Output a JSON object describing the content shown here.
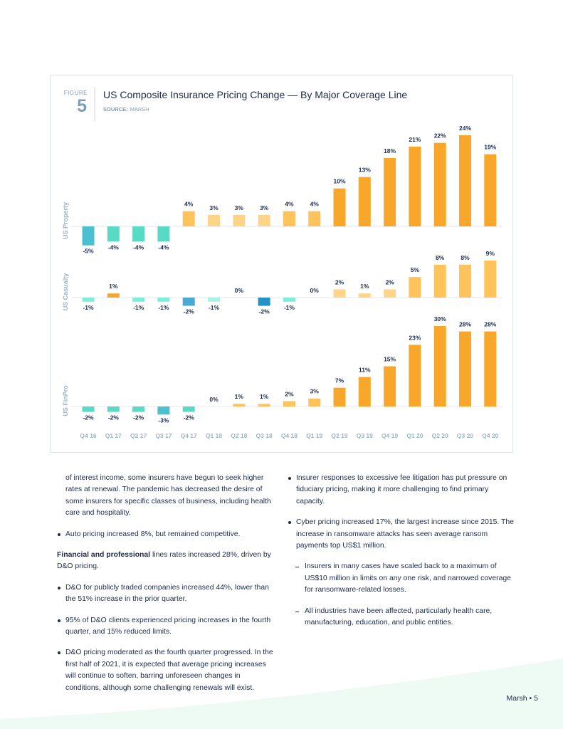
{
  "figure": {
    "label": "FIGURE",
    "number": "5",
    "source_label": "SOURCE:",
    "source": "MARSH"
  },
  "chart_data": {
    "type": "bar",
    "title": "US Composite Insurance Pricing Change — By Major Coverage Line",
    "categories": [
      "Q4 16",
      "Q1 17",
      "Q2 17",
      "Q3 17",
      "Q4 17",
      "Q1 18",
      "Q2 18",
      "Q3 18",
      "Q4 18",
      "Q1 19",
      "Q2 19",
      "Q3 19",
      "Q4 19",
      "Q1 20",
      "Q2 20",
      "Q3 20",
      "Q4 20"
    ],
    "series": [
      {
        "name": "US Property",
        "values": [
          -5,
          -4,
          -4,
          -4,
          4,
          3,
          3,
          3,
          4,
          4,
          10,
          13,
          18,
          21,
          22,
          24,
          19
        ],
        "value_labels": [
          "-5%",
          "-4%",
          "-4%",
          "-4%",
          "4%",
          "3%",
          "3%",
          "3%",
          "4%",
          "4%",
          "10%",
          "13%",
          "18%",
          "21%",
          "22%",
          "24%",
          "19%"
        ],
        "colors": [
          "#4cc0d0",
          "#5ad9c4",
          "#5ad9c4",
          "#5ad9c4",
          "#ffc35c",
          "#ffd488",
          "#ffd488",
          "#ffd488",
          "#ffc35c",
          "#ffc35c",
          "#f9a72b",
          "#f9a72b",
          "#f9a72b",
          "#f9a72b",
          "#f9a72b",
          "#f9a72b",
          "#f9a72b"
        ]
      },
      {
        "name": "US Casualty",
        "values": [
          -1,
          1,
          -1,
          -1,
          -2,
          -1,
          0,
          -2,
          -1,
          0,
          2,
          1,
          2,
          5,
          8,
          8,
          9
        ],
        "value_labels": [
          "-1%",
          "1%",
          "-1%",
          "-1%",
          "-2%",
          "-1%",
          "0%",
          "-2%",
          "-1%",
          "0%",
          "2%",
          "1%",
          "2%",
          "5%",
          "8%",
          "8%",
          "9%"
        ],
        "colors": [
          "#7eedd9",
          "#f9a72b",
          "#7eedd9",
          "#7eedd9",
          "#4aa8d4",
          "#a8f3e5",
          "#ffd488",
          "#2592c4",
          "#7eedd9",
          "#ffd488",
          "#ffd488",
          "#ffd488",
          "#ffd488",
          "#ffc35c",
          "#ffc35c",
          "#ffc35c",
          "#ffc35c"
        ]
      },
      {
        "name": "US FinPro",
        "values": [
          -2,
          -2,
          -2,
          -3,
          -2,
          0,
          1,
          1,
          2,
          3,
          7,
          11,
          15,
          23,
          30,
          28,
          28
        ],
        "value_labels": [
          "-2%",
          "-2%",
          "-2%",
          "-3%",
          "-2%",
          "0%",
          "1%",
          "1%",
          "2%",
          "3%",
          "7%",
          "11%",
          "15%",
          "23%",
          "30%",
          "28%",
          "28%"
        ],
        "colors": [
          "#5ad9c4",
          "#5ad9c4",
          "#5ad9c4",
          "#4cc0d0",
          "#5ad9c4",
          "#ffd488",
          "#ffc35c",
          "#ffc35c",
          "#ffc35c",
          "#ffc35c",
          "#f9a72b",
          "#f9a72b",
          "#f9a72b",
          "#f9a72b",
          "#f9a72b",
          "#f9a72b",
          "#f9a72b"
        ]
      }
    ]
  },
  "left_column": {
    "continuation": "of interest income, some insurers have begun to seek higher rates at renewal. The pandemic has decreased the desire of some insurers for specific classes of business, including health care and hospitality.",
    "bullet_auto": "Auto pricing increased 8%, but remained competitive.",
    "finpro_bold": "Financial and professional",
    "finpro_rest": " lines rates increased 28%, driven by D&O pricing.",
    "bullets": [
      "D&O for publicly traded companies increased 44%, lower than the 51% increase in the prior quarter.",
      "95% of D&O clients experienced pricing increases in the fourth quarter, and 15% reduced limits.",
      "D&O pricing moderated as the fourth quarter progressed. In the first half of 2021, it is expected that average pricing increases will continue to soften, barring unforeseen changes in conditions, although some challenging renewals will exist."
    ]
  },
  "right_column": {
    "bullets": [
      "Insurer responses to excessive fee litigation has put pressure on fiduciary pricing, making it more challenging to find primary capacity.",
      "Cyber pricing increased 17%, the largest increase since 2015. The increase in ransomware attacks has seen average ransom payments top US$1 million."
    ],
    "sub_bullets": [
      "Insurers in many cases have scaled back to a maximum of US$10 million in limits on any one risk, and narrowed coverage for ransomware-related losses.",
      "All industries have been affected, particularly health care, manufacturing, education, and public entities."
    ]
  },
  "footer": "Marsh • 5"
}
